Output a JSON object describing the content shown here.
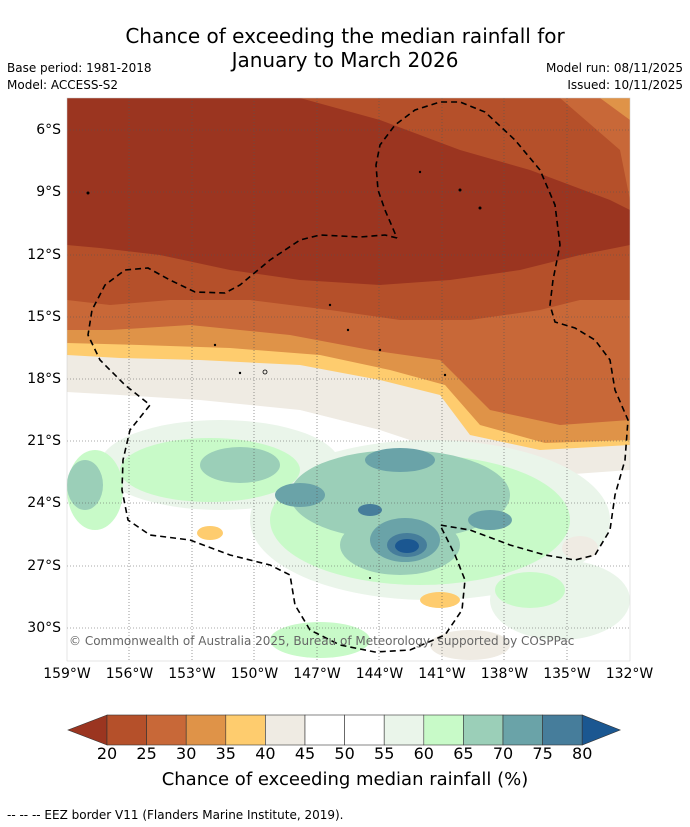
{
  "title_line1": "Chance of exceeding the median rainfall for",
  "title_line2": "January to March 2026",
  "base_period": "Base period: 1981-2018",
  "model": "Model: ACCESS-S2",
  "model_run": "Model run: 08/11/2025",
  "issued": "Issued: 10/11/2025",
  "lat_labels": [
    "6°S",
    "9°S",
    "12°S",
    "15°S",
    "18°S",
    "21°S",
    "24°S",
    "27°S",
    "30°S"
  ],
  "lon_labels": [
    "159°W",
    "156°W",
    "153°W",
    "150°W",
    "147°W",
    "144°W",
    "141°W",
    "138°W",
    "135°W",
    "132°W"
  ],
  "copyright": "© Commonwealth of Australia 2025, Bureau of Meteorology, supported by COSPPac",
  "colorbar": {
    "ticks": [
      "20",
      "25",
      "30",
      "35",
      "40",
      "45",
      "50",
      "55",
      "60",
      "65",
      "70",
      "75",
      "80"
    ],
    "colors": [
      "#9b3520",
      "#b5502a",
      "#c86838",
      "#df9348",
      "#fecc6e",
      "#efebe3",
      "#ffffff",
      "#ffffff",
      "#eaf5ea",
      "#c8fac8",
      "#9bcfb8",
      "#6aa3a8",
      "#467d9b",
      "#1b5791"
    ],
    "title": "Chance of exceeding median rainfall (%)"
  },
  "footer": "--  --  -- EEZ border V11 (Flanders Marine Institute, 2019)."
}
